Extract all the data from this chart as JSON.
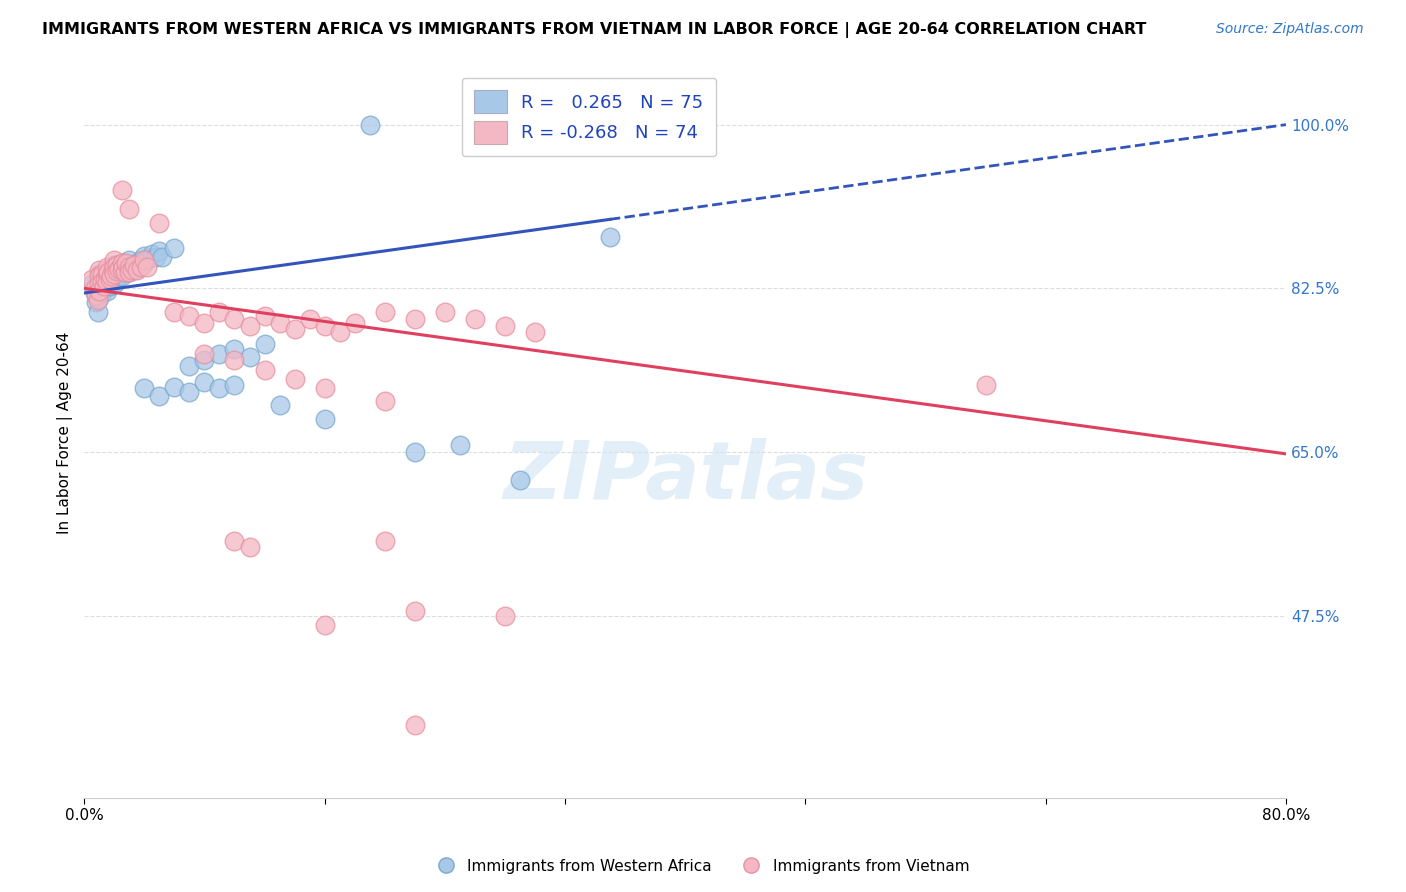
{
  "title": "IMMIGRANTS FROM WESTERN AFRICA VS IMMIGRANTS FROM VIETNAM IN LABOR FORCE | AGE 20-64 CORRELATION CHART",
  "source": "Source: ZipAtlas.com",
  "ylabel": "In Labor Force | Age 20-64",
  "xlim": [
    0.0,
    0.8
  ],
  "ylim": [
    0.28,
    1.06
  ],
  "ytick_vals": [
    0.475,
    0.65,
    0.825,
    1.0
  ],
  "ytick_labels": [
    "47.5%",
    "65.0%",
    "82.5%",
    "100.0%"
  ],
  "xtick_vals": [
    0.0,
    0.16,
    0.32,
    0.48,
    0.64,
    0.8
  ],
  "xtick_labels": [
    "0.0%",
    "",
    "",
    "",
    "",
    "80.0%"
  ],
  "r_blue": 0.265,
  "n_blue": 75,
  "r_pink": -0.268,
  "n_pink": 74,
  "blue_color": "#a8c8e8",
  "pink_color": "#f4b8c4",
  "blue_edge_color": "#7aaace",
  "pink_edge_color": "#e890a0",
  "blue_line_color": "#3355bb",
  "pink_line_color": "#e04060",
  "blue_line_solid_end": 0.35,
  "blue_line_y0": 0.82,
  "blue_line_y1": 1.0,
  "pink_line_y0": 0.825,
  "pink_line_y1": 0.648,
  "legend_label_blue": "Immigrants from Western Africa",
  "legend_label_pink": "Immigrants from Vietnam",
  "watermark": "ZIPatlas",
  "background_color": "#ffffff",
  "grid_color": "#dddddd",
  "blue_scatter": [
    [
      0.005,
      0.83
    ],
    [
      0.007,
      0.82
    ],
    [
      0.008,
      0.81
    ],
    [
      0.009,
      0.8
    ],
    [
      0.01,
      0.84
    ],
    [
      0.01,
      0.83
    ],
    [
      0.01,
      0.82
    ],
    [
      0.01,
      0.815
    ],
    [
      0.012,
      0.835
    ],
    [
      0.012,
      0.828
    ],
    [
      0.012,
      0.82
    ],
    [
      0.013,
      0.825
    ],
    [
      0.015,
      0.845
    ],
    [
      0.015,
      0.838
    ],
    [
      0.015,
      0.83
    ],
    [
      0.015,
      0.822
    ],
    [
      0.016,
      0.84
    ],
    [
      0.016,
      0.832
    ],
    [
      0.017,
      0.835
    ],
    [
      0.017,
      0.828
    ],
    [
      0.018,
      0.842
    ],
    [
      0.018,
      0.835
    ],
    [
      0.019,
      0.838
    ],
    [
      0.02,
      0.85
    ],
    [
      0.02,
      0.845
    ],
    [
      0.02,
      0.84
    ],
    [
      0.02,
      0.835
    ],
    [
      0.02,
      0.83
    ],
    [
      0.022,
      0.848
    ],
    [
      0.022,
      0.842
    ],
    [
      0.023,
      0.845
    ],
    [
      0.023,
      0.838
    ],
    [
      0.025,
      0.852
    ],
    [
      0.025,
      0.845
    ],
    [
      0.025,
      0.838
    ],
    [
      0.026,
      0.848
    ],
    [
      0.027,
      0.842
    ],
    [
      0.028,
      0.85
    ],
    [
      0.028,
      0.843
    ],
    [
      0.03,
      0.855
    ],
    [
      0.03,
      0.848
    ],
    [
      0.03,
      0.842
    ],
    [
      0.032,
      0.85
    ],
    [
      0.033,
      0.845
    ],
    [
      0.035,
      0.852
    ],
    [
      0.036,
      0.848
    ],
    [
      0.038,
      0.855
    ],
    [
      0.04,
      0.86
    ],
    [
      0.04,
      0.852
    ],
    [
      0.042,
      0.856
    ],
    [
      0.045,
      0.862
    ],
    [
      0.048,
      0.858
    ],
    [
      0.05,
      0.865
    ],
    [
      0.052,
      0.858
    ],
    [
      0.06,
      0.868
    ],
    [
      0.07,
      0.742
    ],
    [
      0.08,
      0.748
    ],
    [
      0.09,
      0.755
    ],
    [
      0.1,
      0.76
    ],
    [
      0.11,
      0.752
    ],
    [
      0.12,
      0.765
    ],
    [
      0.04,
      0.718
    ],
    [
      0.05,
      0.71
    ],
    [
      0.06,
      0.72
    ],
    [
      0.07,
      0.714
    ],
    [
      0.08,
      0.725
    ],
    [
      0.09,
      0.718
    ],
    [
      0.1,
      0.722
    ],
    [
      0.13,
      0.7
    ],
    [
      0.16,
      0.685
    ],
    [
      0.19,
      1.0
    ],
    [
      0.22,
      0.65
    ],
    [
      0.25,
      0.658
    ],
    [
      0.35,
      0.88
    ],
    [
      0.29,
      0.62
    ]
  ],
  "pink_scatter": [
    [
      0.005,
      0.835
    ],
    [
      0.007,
      0.825
    ],
    [
      0.008,
      0.818
    ],
    [
      0.009,
      0.812
    ],
    [
      0.01,
      0.845
    ],
    [
      0.01,
      0.838
    ],
    [
      0.01,
      0.83
    ],
    [
      0.01,
      0.822
    ],
    [
      0.012,
      0.84
    ],
    [
      0.012,
      0.832
    ],
    [
      0.013,
      0.828
    ],
    [
      0.014,
      0.835
    ],
    [
      0.015,
      0.848
    ],
    [
      0.015,
      0.84
    ],
    [
      0.015,
      0.832
    ],
    [
      0.016,
      0.842
    ],
    [
      0.017,
      0.835
    ],
    [
      0.018,
      0.838
    ],
    [
      0.019,
      0.845
    ],
    [
      0.02,
      0.855
    ],
    [
      0.02,
      0.848
    ],
    [
      0.02,
      0.84
    ],
    [
      0.022,
      0.85
    ],
    [
      0.022,
      0.843
    ],
    [
      0.023,
      0.846
    ],
    [
      0.025,
      0.852
    ],
    [
      0.025,
      0.845
    ],
    [
      0.026,
      0.848
    ],
    [
      0.027,
      0.842
    ],
    [
      0.028,
      0.852
    ],
    [
      0.03,
      0.848
    ],
    [
      0.03,
      0.842
    ],
    [
      0.032,
      0.845
    ],
    [
      0.033,
      0.85
    ],
    [
      0.035,
      0.845
    ],
    [
      0.038,
      0.848
    ],
    [
      0.04,
      0.855
    ],
    [
      0.042,
      0.848
    ],
    [
      0.05,
      0.895
    ],
    [
      0.03,
      0.91
    ],
    [
      0.025,
      0.93
    ],
    [
      0.06,
      0.8
    ],
    [
      0.07,
      0.795
    ],
    [
      0.08,
      0.788
    ],
    [
      0.09,
      0.8
    ],
    [
      0.1,
      0.792
    ],
    [
      0.11,
      0.785
    ],
    [
      0.12,
      0.795
    ],
    [
      0.13,
      0.788
    ],
    [
      0.14,
      0.782
    ],
    [
      0.15,
      0.792
    ],
    [
      0.16,
      0.785
    ],
    [
      0.17,
      0.778
    ],
    [
      0.18,
      0.788
    ],
    [
      0.2,
      0.8
    ],
    [
      0.22,
      0.792
    ],
    [
      0.24,
      0.8
    ],
    [
      0.26,
      0.792
    ],
    [
      0.28,
      0.785
    ],
    [
      0.3,
      0.778
    ],
    [
      0.08,
      0.755
    ],
    [
      0.1,
      0.748
    ],
    [
      0.12,
      0.738
    ],
    [
      0.14,
      0.728
    ],
    [
      0.16,
      0.718
    ],
    [
      0.2,
      0.705
    ],
    [
      0.1,
      0.555
    ],
    [
      0.11,
      0.548
    ],
    [
      0.2,
      0.555
    ],
    [
      0.28,
      0.475
    ],
    [
      0.22,
      0.48
    ],
    [
      0.16,
      0.465
    ],
    [
      0.22,
      0.358
    ],
    [
      0.6,
      0.722
    ]
  ]
}
